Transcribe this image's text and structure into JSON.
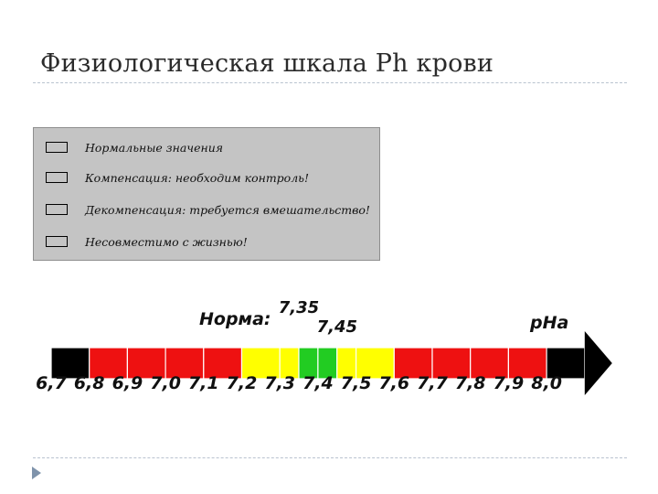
{
  "slide": {
    "title": "Физиологическая шкала Ph крови"
  },
  "legend": {
    "items": [
      {
        "color": "#22cc22",
        "label": "Нормальные значения"
      },
      {
        "color": "#ffff00",
        "label": "Компенсация: необходим контроль!"
      },
      {
        "color": "#ee1111",
        "label": "Декомпенсация: требуется вмешательство!"
      },
      {
        "color": "#000000",
        "label": "Несовместимо с жизнью!"
      }
    ]
  },
  "scale": {
    "norm_label": "Норма:",
    "norm_low": "7,35",
    "norm_high": "7,45",
    "axis_label": "pHa",
    "ticks": [
      "6,7",
      "6,8",
      "6,9",
      "7,0",
      "7,1",
      "7,2",
      "7,3",
      "7,4",
      "7,5",
      "7,6",
      "7,7",
      "7,8",
      "7,9",
      "8,0"
    ],
    "segments": [
      {
        "from": 6.7,
        "to": 6.8,
        "color": "#000000"
      },
      {
        "from": 6.8,
        "to": 6.9,
        "color": "#ee1111"
      },
      {
        "from": 6.9,
        "to": 7.0,
        "color": "#ee1111"
      },
      {
        "from": 7.0,
        "to": 7.1,
        "color": "#ee1111"
      },
      {
        "from": 7.1,
        "to": 7.2,
        "color": "#ee1111"
      },
      {
        "from": 7.2,
        "to": 7.3,
        "color": "#ffff00"
      },
      {
        "from": 7.3,
        "to": 7.35,
        "color": "#ffff00"
      },
      {
        "from": 7.35,
        "to": 7.4,
        "color": "#22cc22"
      },
      {
        "from": 7.4,
        "to": 7.45,
        "color": "#22cc22"
      },
      {
        "from": 7.45,
        "to": 7.5,
        "color": "#ffff00"
      },
      {
        "from": 7.5,
        "to": 7.6,
        "color": "#ffff00"
      },
      {
        "from": 7.6,
        "to": 7.7,
        "color": "#ee1111"
      },
      {
        "from": 7.7,
        "to": 7.8,
        "color": "#ee1111"
      },
      {
        "from": 7.8,
        "to": 7.9,
        "color": "#ee1111"
      },
      {
        "from": 7.9,
        "to": 8.0,
        "color": "#ee1111"
      },
      {
        "from": 8.0,
        "to": 8.1,
        "color": "#000000"
      }
    ]
  }
}
